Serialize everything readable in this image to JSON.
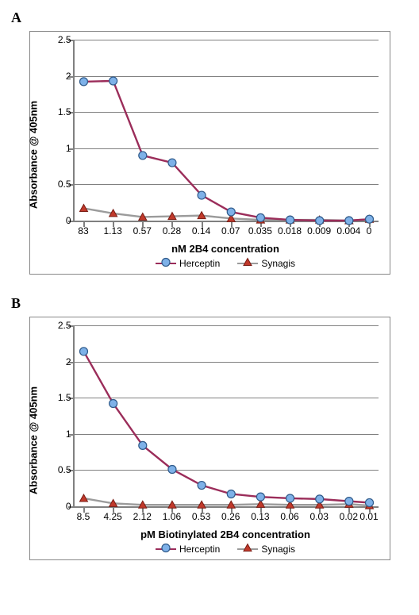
{
  "panel_labels": {
    "a": "A",
    "b": "B"
  },
  "colors": {
    "herceptin_line": "#9b2d5a",
    "herceptin_marker_fill": "#7eb1e8",
    "herceptin_marker_stroke": "#2f5a8a",
    "synagis_line": "#9b9b9b",
    "synagis_marker_fill": "#c0392b",
    "synagis_marker_stroke": "#7a1c14",
    "axis": "#808080",
    "grid": "#808080",
    "text": "#000000",
    "panel_border": "#888888",
    "background": "#ffffff"
  },
  "legend": {
    "herceptin": "Herceptin",
    "synagis": "Synagis"
  },
  "style": {
    "line_width": 2.4,
    "marker_radius": 5,
    "triangle_size": 10,
    "grid_width": 1,
    "axis_width": 2,
    "y_title_fontsize": 13,
    "x_title_fontsize": 13,
    "tick_fontsize": 12,
    "legend_fontsize": 12,
    "panel_label_fontsize": 18
  },
  "chartA": {
    "type": "line",
    "y_title": "Absorbance @ 405nm",
    "x_title": "nM 2B4 concentration",
    "ylim": [
      0,
      2.5
    ],
    "ytick_step": 0.5,
    "y_ticks": [
      0,
      0.5,
      1,
      1.5,
      2,
      2.5
    ],
    "categories": [
      "83",
      "1.13",
      "0.57",
      "0.28",
      "0.14",
      "0.07",
      "0.035",
      "0.018",
      "0.009",
      "0.004",
      "0"
    ],
    "x_positions_pct": [
      3,
      12.7,
      22.4,
      32.1,
      41.8,
      51.5,
      61.2,
      70.9,
      80.6,
      90.3,
      97
    ],
    "series": {
      "herceptin": {
        "label": "Herceptin",
        "marker": "circle",
        "values": [
          1.92,
          1.93,
          0.9,
          0.8,
          0.35,
          0.12,
          0.04,
          0.01,
          0.0,
          0.0,
          0.02
        ]
      },
      "synagis": {
        "label": "Synagis",
        "marker": "triangle",
        "values": [
          0.17,
          0.1,
          0.05,
          0.06,
          0.07,
          0.03,
          0.01,
          0.01,
          0.01,
          0.0,
          0.02
        ]
      }
    }
  },
  "chartB": {
    "type": "line",
    "y_title": "Absorbance @ 405nm",
    "x_title": "pM Biotinylated 2B4 concentration",
    "ylim": [
      0,
      2.5
    ],
    "ytick_step": 0.5,
    "y_ticks": [
      0,
      0.5,
      1,
      1.5,
      2,
      2.5
    ],
    "categories": [
      "8.5",
      "4.25",
      "2.12",
      "1.06",
      "0.53",
      "0.26",
      "0.13",
      "0.06",
      "0.03",
      "0.02",
      "0.01"
    ],
    "x_positions_pct": [
      3,
      12.7,
      22.4,
      32.1,
      41.8,
      51.5,
      61.2,
      70.9,
      80.6,
      90.3,
      97
    ],
    "series": {
      "herceptin": {
        "label": "Herceptin",
        "marker": "circle",
        "values": [
          2.14,
          1.42,
          0.84,
          0.51,
          0.29,
          0.17,
          0.13,
          0.11,
          0.1,
          0.07,
          0.05
        ]
      },
      "synagis": {
        "label": "Synagis",
        "marker": "triangle",
        "values": [
          0.11,
          0.04,
          0.02,
          0.02,
          0.02,
          0.02,
          0.03,
          0.02,
          0.02,
          0.03,
          0.01
        ]
      }
    }
  }
}
